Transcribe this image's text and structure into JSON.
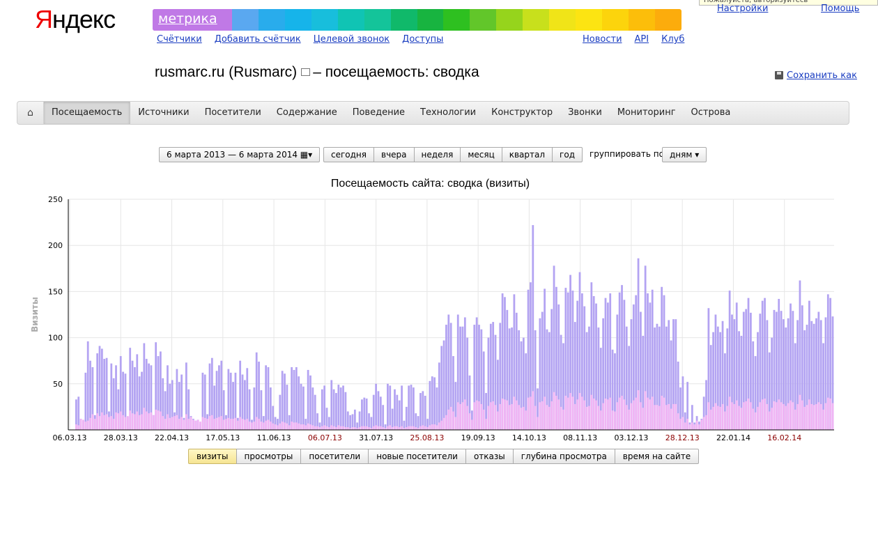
{
  "logo": {
    "first": "Я",
    "rest": "ндекс"
  },
  "brand": {
    "label": "метрика",
    "rainbow": [
      "#c079e6",
      "#c079e6",
      "#c079e6",
      "#5aa8f0",
      "#29acec",
      "#16b4ea",
      "#18bedc",
      "#10c4b4",
      "#14c49a",
      "#10b96a",
      "#18b440",
      "#2ec020",
      "#62c62a",
      "#96d41c",
      "#c8e01c",
      "#f0e418",
      "#fce412",
      "#fcd40c",
      "#fcbe0a",
      "#fcac0c"
    ]
  },
  "tooltip": "Пожалуйста, авторизуйтесь",
  "topnav": {
    "left": [
      "Счётчики",
      "Добавить счётчик",
      "Целевой звонок",
      "Доступы"
    ],
    "right": [
      "Новости",
      "API",
      "Клуб"
    ],
    "settings": "Настройки",
    "help": "Помощь"
  },
  "page": {
    "site": "rusmarc.ru (Rusmarc)",
    "title_suffix": "– посещаемость: сводка",
    "save": "Сохранить как"
  },
  "mainnav": {
    "home_icon": "home-icon",
    "items": [
      "Посещаемость",
      "Источники",
      "Посетители",
      "Содержание",
      "Поведение",
      "Технологии",
      "Конструктор",
      "Звонки",
      "Мониторинг",
      "Острова"
    ],
    "active": "Посещаемость"
  },
  "controls": {
    "date_range": "6 марта 2013 — 6 марта 2014",
    "calendar_icon": "calendar-icon",
    "periods": [
      "сегодня",
      "вчера",
      "неделя",
      "месяц",
      "квартал",
      "год"
    ],
    "group_label": "группировать по",
    "group_value": "дням"
  },
  "chart_data": {
    "type": "bar",
    "title": "Посещаемость сайта: сводка (визиты)",
    "ylabel": "Визиты",
    "ylim": [
      0,
      250
    ],
    "yticks": [
      50,
      100,
      150,
      200,
      250
    ],
    "grid": true,
    "xtick_labels": [
      {
        "label": "06.03.13",
        "weekend": false
      },
      {
        "label": "28.03.13",
        "weekend": false
      },
      {
        "label": "22.04.13",
        "weekend": false
      },
      {
        "label": "17.05.13",
        "weekend": false
      },
      {
        "label": "11.06.13",
        "weekend": false
      },
      {
        "label": "06.07.13",
        "weekend": true
      },
      {
        "label": "31.07.13",
        "weekend": false
      },
      {
        "label": "25.08.13",
        "weekend": true
      },
      {
        "label": "19.09.13",
        "weekend": false
      },
      {
        "label": "14.10.13",
        "weekend": false
      },
      {
        "label": "08.11.13",
        "weekend": false
      },
      {
        "label": "03.12.13",
        "weekend": false
      },
      {
        "label": "28.12.13",
        "weekend": true
      },
      {
        "label": "22.01.14",
        "weekend": false
      },
      {
        "label": "16.02.14",
        "weekend": true
      }
    ],
    "series": [
      {
        "color": "#b3a3f2",
        "values": [
          33,
          36,
          12,
          10,
          62,
          96,
          75,
          68,
          16,
          83,
          91,
          88,
          77,
          78,
          20,
          72,
          56,
          70,
          44,
          80,
          63,
          61,
          14,
          89,
          75,
          68,
          82,
          58,
          63,
          94,
          77,
          72,
          70,
          16,
          95,
          80,
          85,
          56,
          42,
          70,
          50,
          54,
          19,
          66,
          52,
          60,
          13,
          73,
          44,
          15,
          12,
          10,
          11,
          7,
          62,
          60,
          17,
          72,
          78,
          48,
          64,
          70,
          75,
          43,
          16,
          66,
          62,
          52,
          62,
          13,
          75,
          60,
          54,
          67,
          44,
          11,
          46,
          84,
          74,
          43,
          15,
          70,
          68,
          46,
          26,
          14,
          12,
          38,
          64,
          61,
          49,
          16,
          68,
          65,
          68,
          58,
          50,
          47,
          12,
          65,
          59,
          46,
          38,
          18,
          8,
          44,
          48,
          24,
          14,
          54,
          44,
          40,
          49,
          46,
          48,
          41,
          20,
          16,
          17,
          22,
          8,
          20,
          33,
          35,
          34,
          18,
          14,
          38,
          50,
          42,
          36,
          27,
          6,
          50,
          48,
          23,
          44,
          38,
          32,
          48,
          10,
          25,
          48,
          49,
          46,
          18,
          15,
          40,
          42,
          37,
          12,
          53,
          58,
          57,
          46,
          73,
          91,
          97,
          114,
          125,
          116,
          80,
          52,
          125,
          112,
          112,
          122,
          100,
          59,
          21,
          114,
          122,
          114,
          109,
          85,
          40,
          100,
          115,
          117,
          103,
          76,
          116,
          148,
          144,
          130,
          110,
          111,
          147,
          127,
          108,
          96,
          100,
          83,
          152,
          160,
          222,
          108,
          45,
          121,
          128,
          153,
          109,
          106,
          131,
          178,
          155,
          136,
          103,
          94,
          154,
          149,
          168,
          151,
          117,
          140,
          171,
          148,
          134,
          106,
          112,
          160,
          145,
          137,
          111,
          89,
          121,
          143,
          138,
          148,
          87,
          83,
          125,
          149,
          157,
          141,
          112,
          91,
          120,
          136,
          146,
          186,
          128,
          102,
          178,
          148,
          138,
          152,
          111,
          115,
          112,
          155,
          146,
          112,
          119,
          97,
          120,
          120,
          74,
          46,
          58,
          19,
          52,
          8,
          27,
          8,
          15,
          9,
          12,
          36,
          54,
          132,
          92,
          106,
          125,
          112,
          106,
          118,
          83,
          110,
          151,
          125,
          120,
          138,
          107,
          102,
          128,
          131,
          143,
          127,
          96,
          80,
          106,
          126,
          140,
          143,
          119,
          84,
          100,
          130,
          128,
          142,
          129,
          120,
          111,
          121,
          137,
          129,
          94,
          119,
          162,
          135,
          108,
          114,
          140,
          118,
          115,
          121,
          128,
          119,
          94,
          122,
          147,
          143,
          123
        ]
      },
      {
        "color": "#f0b4f4",
        "values": [
          6,
          5,
          12,
          11,
          9,
          10,
          13,
          17,
          12,
          18,
          15,
          19,
          16,
          17,
          14,
          15,
          12,
          19,
          18,
          20,
          16,
          14,
          15,
          21,
          18,
          17,
          20,
          16,
          17,
          24,
          20,
          18,
          19,
          16,
          22,
          21,
          20,
          15,
          12,
          17,
          13,
          14,
          15,
          16,
          12,
          14,
          11,
          17,
          12,
          14,
          11,
          10,
          11,
          9,
          14,
          13,
          12,
          15,
          16,
          12,
          13,
          14,
          15,
          11,
          12,
          13,
          12,
          12,
          13,
          10,
          14,
          12,
          11,
          12,
          9,
          8,
          9,
          14,
          12,
          9,
          8,
          10,
          11,
          9,
          7,
          6,
          5,
          7,
          9,
          8,
          7,
          5,
          9,
          8,
          8,
          7,
          6,
          6,
          5,
          7,
          6,
          5,
          4,
          4,
          3,
          4,
          5,
          4,
          3,
          5,
          4,
          3,
          5,
          4,
          4,
          3,
          3,
          2,
          3,
          3,
          2,
          3,
          4,
          4,
          4,
          3,
          2,
          4,
          5,
          4,
          4,
          3,
          2,
          4,
          5,
          3,
          4,
          4,
          3,
          4,
          2,
          3,
          4,
          4,
          4,
          3,
          2,
          4,
          5,
          4,
          3,
          5,
          6,
          6,
          5,
          8,
          10,
          13,
          16,
          22,
          25,
          20,
          14,
          30,
          28,
          30,
          33,
          26,
          18,
          11,
          30,
          32,
          31,
          28,
          22,
          12,
          26,
          30,
          31,
          27,
          20,
          28,
          34,
          33,
          32,
          27,
          28,
          36,
          32,
          27,
          24,
          25,
          21,
          35,
          36,
          42,
          26,
          14,
          30,
          31,
          36,
          27,
          25,
          31,
          41,
          37,
          33,
          25,
          22,
          37,
          35,
          40,
          36,
          28,
          33,
          40,
          36,
          32,
          25,
          26,
          38,
          34,
          32,
          26,
          21,
          29,
          34,
          33,
          35,
          21,
          20,
          30,
          35,
          37,
          33,
          27,
          22,
          29,
          32,
          35,
          43,
          30,
          24,
          42,
          35,
          33,
          36,
          27,
          27,
          26,
          37,
          35,
          27,
          28,
          23,
          28,
          28,
          18,
          12,
          14,
          8,
          12,
          6,
          8,
          6,
          10,
          6,
          11,
          14,
          16,
          30,
          22,
          25,
          29,
          26,
          25,
          28,
          20,
          26,
          36,
          30,
          28,
          32,
          26,
          24,
          30,
          31,
          34,
          30,
          23,
          19,
          25,
          30,
          33,
          34,
          28,
          20,
          24,
          31,
          30,
          33,
          30,
          28,
          26,
          29,
          32,
          30,
          22,
          28,
          38,
          32,
          25,
          27,
          33,
          28,
          27,
          28,
          30,
          28,
          22,
          29,
          35,
          34,
          29
        ]
      }
    ]
  },
  "metric_tabs": {
    "items": [
      "визиты",
      "просмотры",
      "посетители",
      "новые посетители",
      "отказы",
      "глубина просмотра",
      "время на сайте"
    ],
    "active": "визиты"
  }
}
